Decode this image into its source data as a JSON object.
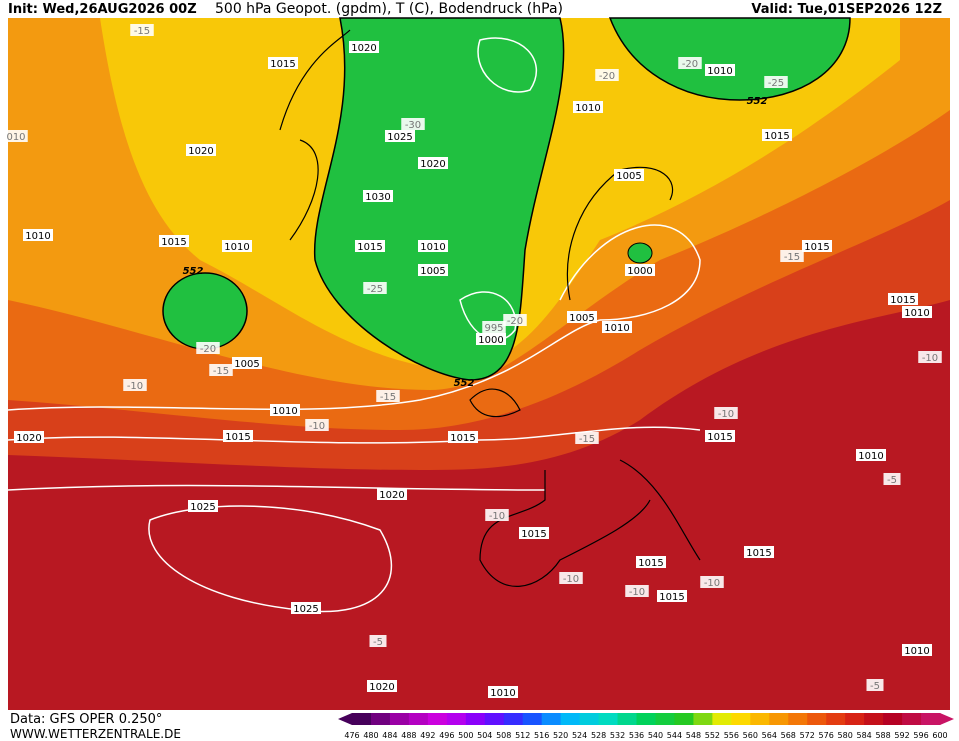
{
  "header": {
    "init": "Init: Wed,26AUG2026 00Z",
    "title": "500 hPa Geopot. (gpdm), T (C), Bodendruck (hPa)",
    "valid": "Valid: Tue,01SEP2026 12Z"
  },
  "footer": {
    "data": "Data: GFS OPER 0.250°",
    "website": "WWW.WETTERZENTRALE.DE"
  },
  "colorbar": {
    "labels": [
      476,
      480,
      484,
      488,
      492,
      496,
      500,
      504,
      508,
      512,
      516,
      520,
      524,
      528,
      532,
      536,
      540,
      544,
      548,
      552,
      556,
      560,
      564,
      568,
      572,
      576,
      580,
      584,
      588,
      592,
      596,
      600
    ]
  },
  "map_labels": [
    "-15",
    "1020",
    "1015",
    "-20",
    "-20",
    "1010",
    "-25",
    "552",
    "1010",
    "-30",
    "1025",
    "1015",
    "010",
    "1020",
    "1020",
    "1005",
    "1030",
    "1010",
    "1015",
    "1010",
    "1015",
    "1010",
    "1015",
    "-15",
    "552",
    "1005",
    "1000",
    "-25",
    "1015",
    "1010",
    "-20",
    "995",
    "1005",
    "1010",
    "1000",
    "-20",
    "1005",
    "-15",
    "-10",
    "552",
    "-10",
    "-15",
    "1010",
    "-10",
    "-10",
    "1015",
    "1015",
    "-15",
    "1015",
    "1020",
    "1010",
    "-5",
    "1020",
    "1025",
    "-10",
    "1015",
    "1015",
    "1015",
    "-10",
    "-10",
    "-10",
    "1015",
    "1025",
    "-5",
    "1010",
    "1020",
    "1010",
    "-5"
  ]
}
